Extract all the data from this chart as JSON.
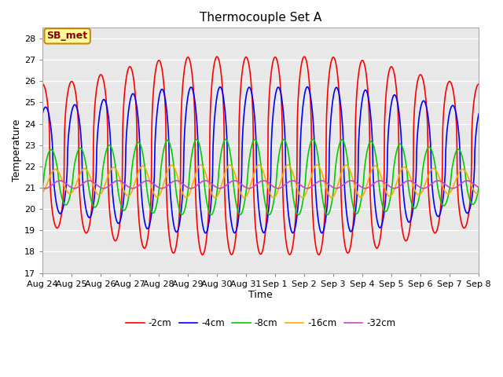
{
  "title": "Thermocouple Set A",
  "xlabel": "Time",
  "ylabel": "Temperature",
  "ylim": [
    17.0,
    28.5
  ],
  "ytick_min": 17.0,
  "ytick_max": 28.0,
  "ytick_step": 1.0,
  "fig_bg_color": "#ffffff",
  "plot_bg_color": "#e8e8e8",
  "annotation_label": "SB_met",
  "annotation_bg": "#ffff99",
  "annotation_border": "#cc8800",
  "legend_entries": [
    "-2cm",
    "-4cm",
    "-8cm",
    "-16cm",
    "-32cm"
  ],
  "line_colors": [
    "#ff0000",
    "#0000ff",
    "#00cc00",
    "#ffaa00",
    "#cc44cc"
  ],
  "line_width": 1.2,
  "x_tick_labels": [
    "Aug 24",
    "Aug 25",
    "Aug 26",
    "Aug 27",
    "Aug 28",
    "Aug 29",
    "Aug 30",
    "Aug 31",
    "Sep 1",
    "Sep 2",
    "Sep 3",
    "Sep 4",
    "Sep 5",
    "Sep 6",
    "Sep 7",
    "Sep 8"
  ],
  "n_days": 15,
  "n_points": 1440,
  "period_hours": 24.0,
  "mean_2cm": 22.5,
  "mean_4cm": 22.3,
  "mean_8cm": 21.5,
  "mean_16cm": 21.3,
  "mean_32cm": 21.15,
  "amp_2cm_base": 4.2,
  "amp_4cm_base": 3.1,
  "amp_8cm_base": 1.6,
  "amp_16cm_base": 0.7,
  "amp_32cm_base": 0.18,
  "phase_2cm": 1.57,
  "phase_4cm": 0.9,
  "phase_8cm": -0.3,
  "phase_16cm": -1.2,
  "phase_32cm": -2.2,
  "sharpness_2cm": 2.5,
  "sharpness_4cm": 1.8,
  "sharpness_8cm": 1.3,
  "grid_color": "#ffffff",
  "grid_linewidth": 1.0,
  "tick_fontsize": 8,
  "label_fontsize": 9,
  "title_fontsize": 11,
  "legend_fontsize": 8.5
}
